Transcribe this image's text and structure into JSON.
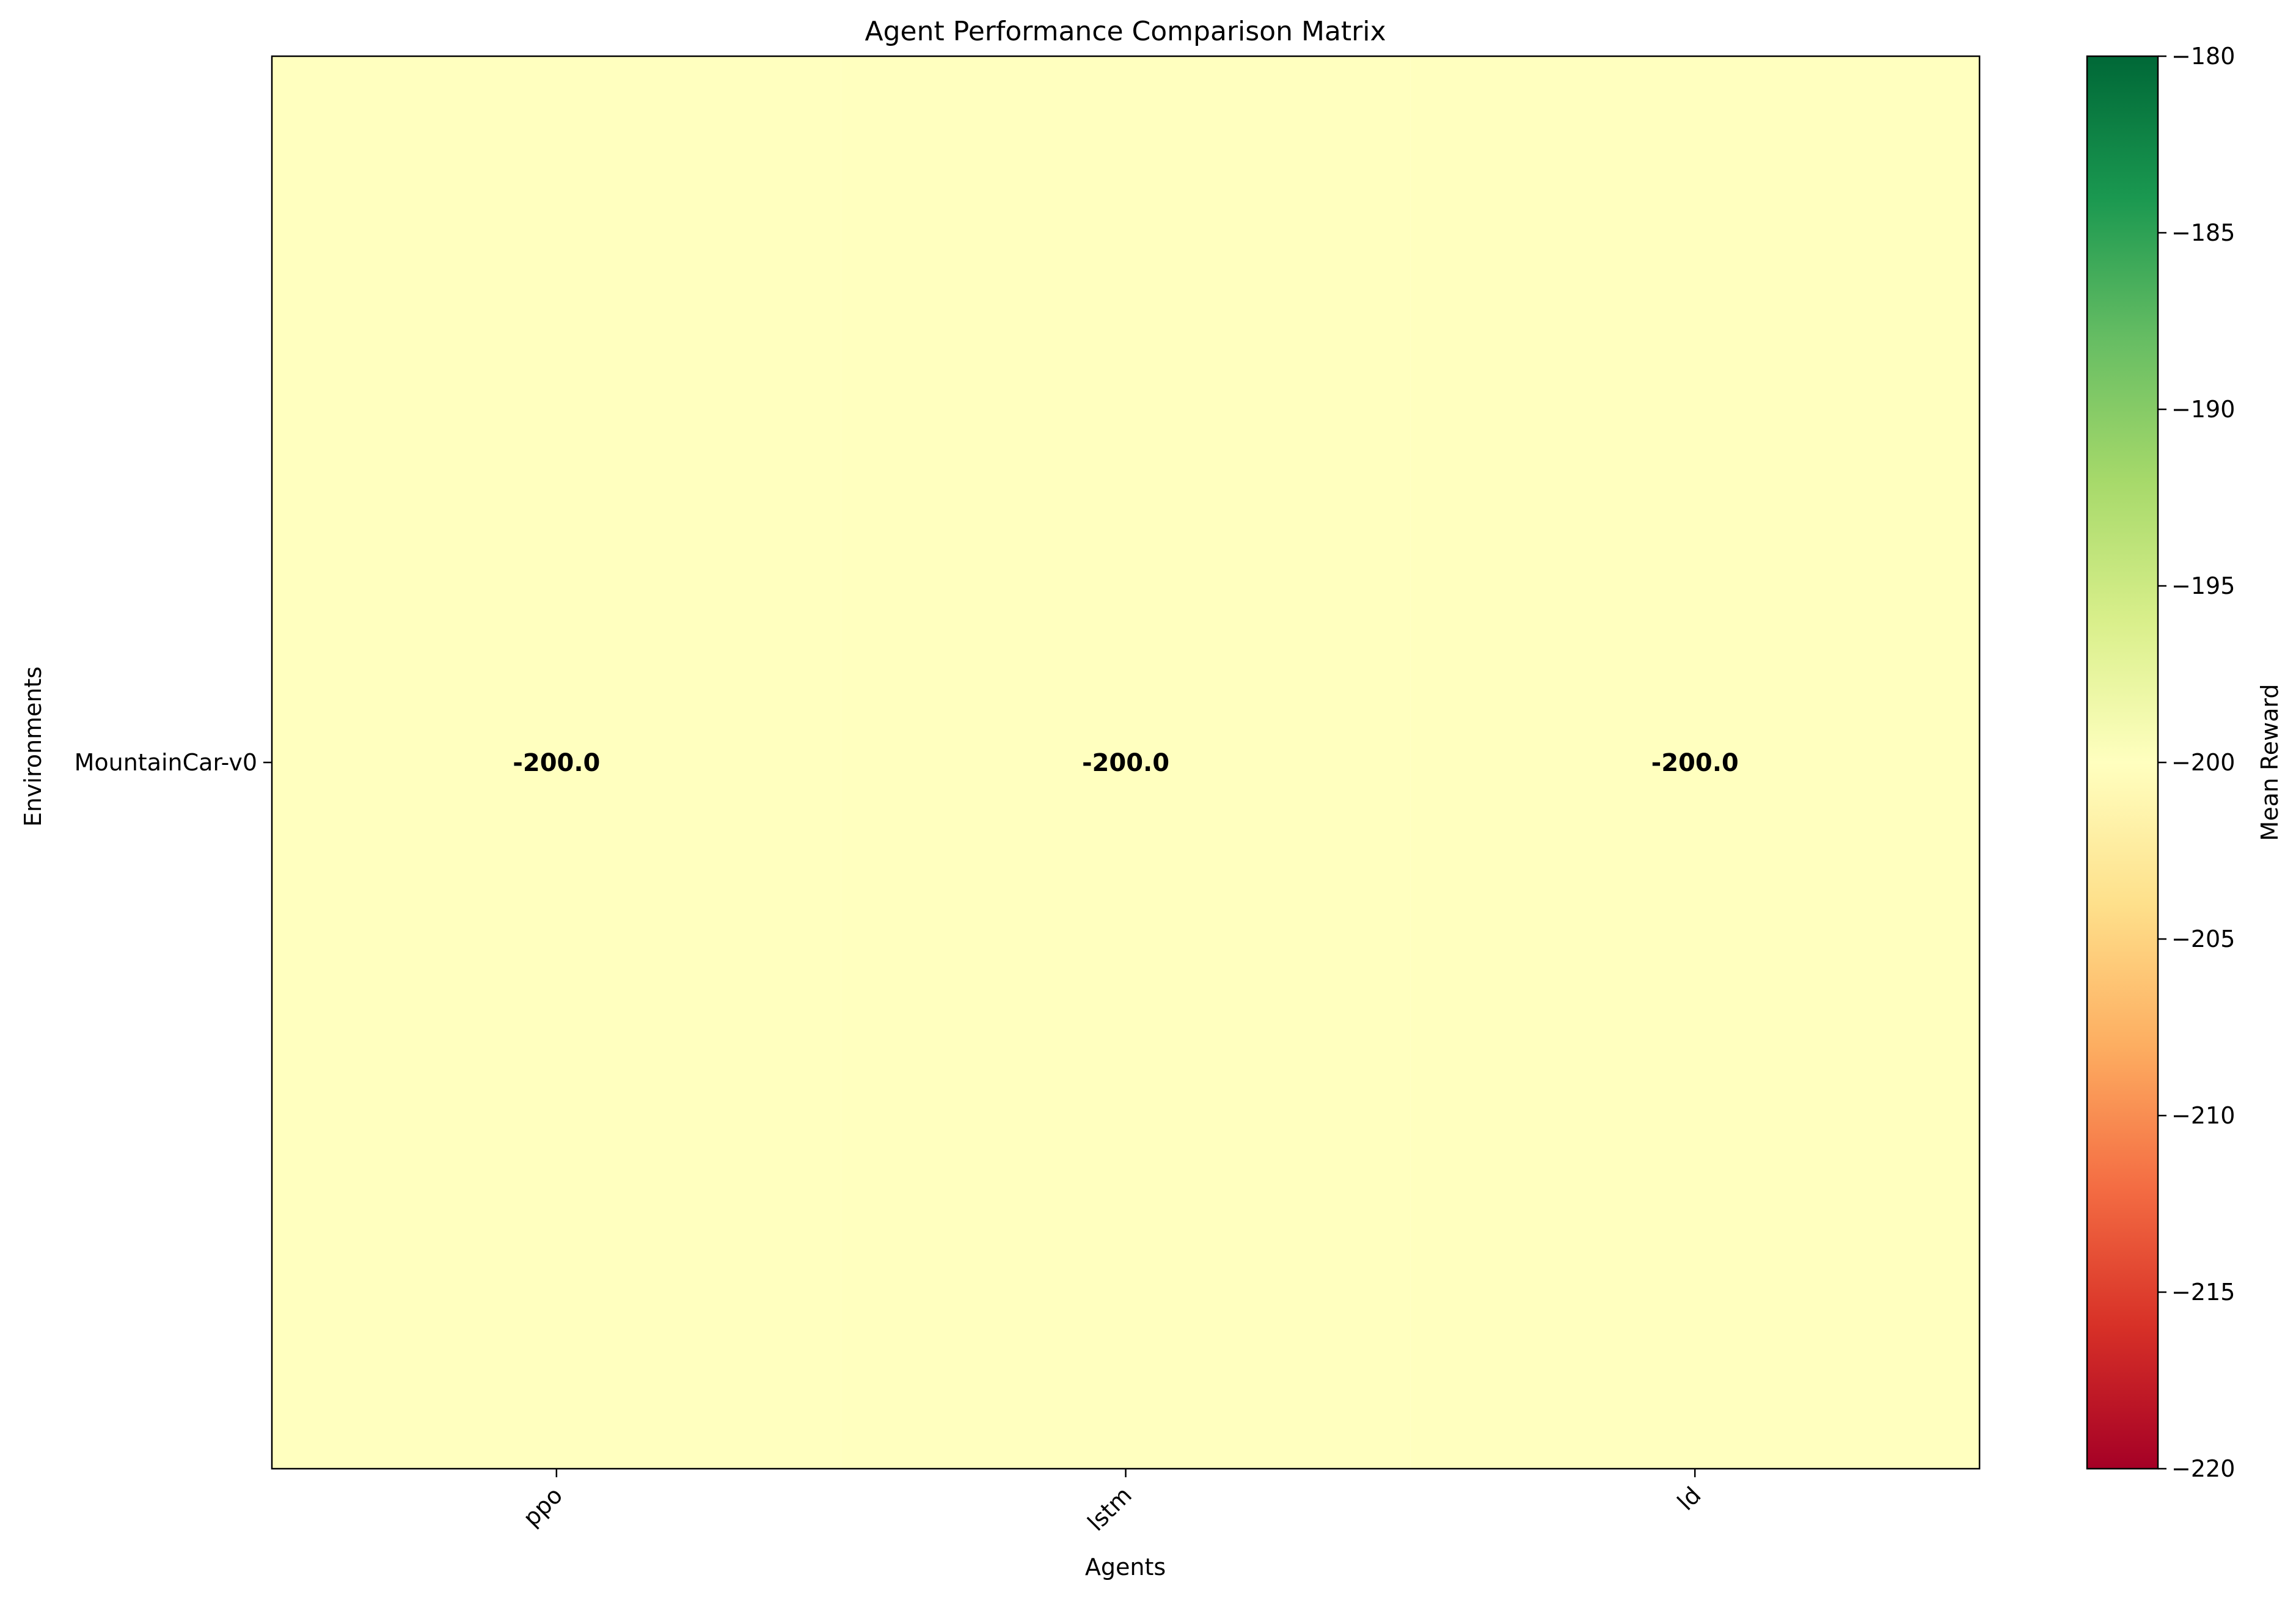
{
  "chart_data": {
    "type": "heatmap",
    "title": "Agent Performance Comparison Matrix",
    "xlabel": "Agents",
    "ylabel": "Environments",
    "x_categories": [
      "ppo",
      "lstm",
      "ld"
    ],
    "y_categories": [
      "MountainCar-v0"
    ],
    "values": [
      [
        -200.0,
        -200.0,
        -200.0
      ]
    ],
    "cell_labels": [
      [
        "-200.0",
        "-200.0",
        "-200.0"
      ]
    ],
    "colormap": "RdYlGn",
    "colorbar": {
      "label": "Mean Reward",
      "range": [
        -220,
        -180
      ],
      "ticks": [
        -180,
        -185,
        -190,
        -195,
        -200,
        -205,
        -210,
        -215,
        -220
      ],
      "tick_labels": [
        "−180",
        "−185",
        "−190",
        "−195",
        "−200",
        "−205",
        "−210",
        "−215",
        "−220"
      ]
    },
    "colors": {
      "stops": [
        "#a50026",
        "#d73027",
        "#f46d43",
        "#fdae61",
        "#fee08b",
        "#ffffbf",
        "#d9ef8b",
        "#a6d96a",
        "#66bd63",
        "#1a9850",
        "#006837"
      ],
      "cell_fill": "#ffffbf"
    },
    "grid": false,
    "legend": "colorbar-right"
  }
}
